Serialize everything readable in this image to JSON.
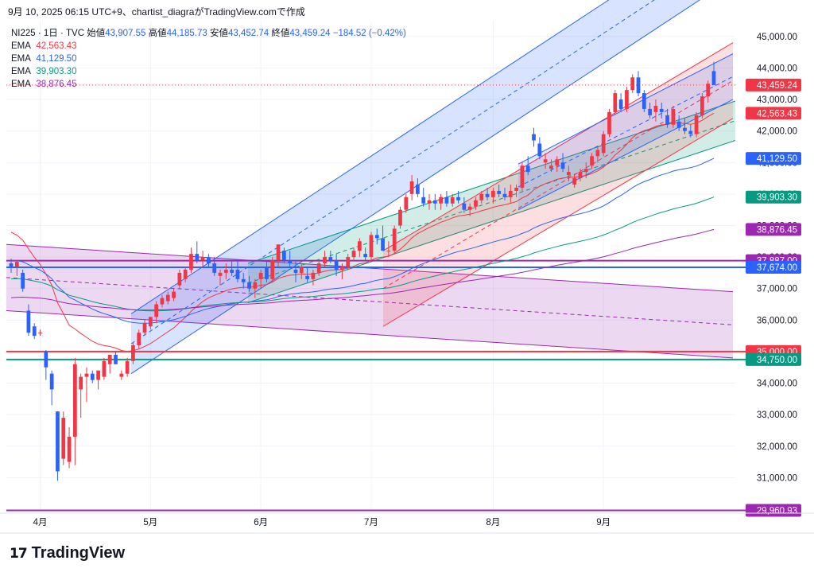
{
  "header": {
    "date_line": "9月 10, 2025 06:15 UTC+9、chartist_diagraがTradingView.comで作成"
  },
  "ohlc": {
    "symbol": "NI225 · 1日 · TVC",
    "open_label": "始値",
    "open": "43,907.55",
    "high_label": "高値",
    "high": "44,185.73",
    "low_label": "安値",
    "low": "43,452.74",
    "close_label": "終値",
    "close": "43,459.24",
    "change": "−184.52 (−0.42%)"
  },
  "legend": [
    {
      "name": "EMA",
      "value": "42,563.43",
      "color": "#f23645"
    },
    {
      "name": "EMA",
      "value": "41,129.50",
      "color": "#2962ff"
    },
    {
      "name": "EMA",
      "value": "39,903.30",
      "color": "#089981"
    },
    {
      "name": "EMA",
      "value": "38,876.45",
      "color": "#9c27b0"
    }
  ],
  "logo": {
    "text": "TradingView"
  },
  "colors": {
    "up": "#f23645",
    "down": "#2962ff",
    "ema_red": "#f23645",
    "ema_blue": "#2962ff",
    "ema_green": "#089981",
    "ema_purple": "#9c27b0"
  },
  "chart_data": {
    "type": "candlestick",
    "y_axis_ticks": [
      "31,000.00",
      "32,000.00",
      "33,000.00",
      "34,000.00",
      "35,000.00",
      "36,000.00",
      "37,000.00",
      "38,000.00",
      "39,000.00",
      "40,000.00",
      "41,000.00",
      "42,000.00",
      "43,000.00",
      "44,000.00",
      "45,000.00"
    ],
    "ylim": [
      30000,
      45500
    ],
    "x_axis_ticks": [
      "4月",
      "5月",
      "6月",
      "7月",
      "8月",
      "9月"
    ],
    "price_labels": [
      {
        "text": "43,459.24",
        "value": 43459.24,
        "color": "#f23645"
      },
      {
        "text": "42,563.43",
        "value": 42563.43,
        "color": "#f23645"
      },
      {
        "text": "41,129.50",
        "value": 41129.5,
        "color": "#2962ff"
      },
      {
        "text": "39,903.30",
        "value": 39903.3,
        "color": "#089981"
      },
      {
        "text": "38,876.45",
        "value": 38876.45,
        "color": "#9c27b0"
      },
      {
        "text": "37,887.00",
        "value": 37887,
        "color": "#9c27b0"
      },
      {
        "text": "37,674.00",
        "value": 37674,
        "color": "#2962ff"
      },
      {
        "text": "35,000.00",
        "value": 35000,
        "color": "#f23645"
      },
      {
        "text": "34,750.00",
        "value": 34750,
        "color": "#089981"
      },
      {
        "text": "29,960.93",
        "value": 29960.93,
        "color": "#9c27b0"
      }
    ],
    "horizontal_lines": [
      {
        "value": 37887,
        "color": "#9c27b0"
      },
      {
        "value": 37674,
        "color": "#2962ff"
      },
      {
        "value": 35000,
        "color": "#f23645"
      },
      {
        "value": 34750,
        "color": "#089981"
      },
      {
        "value": 29960.93,
        "color": "#9c27b0"
      }
    ],
    "candles": [
      [
        37800,
        37950,
        37500,
        37700
      ],
      [
        37700,
        37900,
        37400,
        37850
      ],
      [
        37500,
        37600,
        36900,
        37000
      ],
      [
        36300,
        36500,
        35500,
        35600
      ],
      [
        35800,
        35900,
        35400,
        35500
      ],
      [
        35600,
        35700,
        35500,
        35600
      ],
      [
        35000,
        35050,
        34100,
        34500
      ],
      [
        34300,
        34400,
        33300,
        33800
      ],
      [
        33100,
        33100,
        30900,
        31200
      ],
      [
        31600,
        33100,
        31400,
        32900
      ],
      [
        31500,
        32600,
        31300,
        32300
      ],
      [
        32300,
        34800,
        31400,
        34600
      ],
      [
        33800,
        34300,
        32900,
        34200
      ],
      [
        34200,
        34500,
        33400,
        34300
      ],
      [
        34300,
        34400,
        34000,
        34100
      ],
      [
        34100,
        34400,
        33800,
        34400
      ],
      [
        34200,
        34800,
        34100,
        34700
      ],
      [
        34600,
        34900,
        34300,
        34900
      ],
      [
        34900,
        35000,
        34600,
        34600
      ],
      [
        34200,
        34400,
        34100,
        34300
      ],
      [
        34300,
        34800,
        34200,
        34700
      ],
      [
        34700,
        35300,
        34600,
        35200
      ],
      [
        35200,
        35700,
        35100,
        35600
      ],
      [
        35600,
        36000,
        35500,
        35900
      ],
      [
        35800,
        36100,
        35700,
        36100
      ],
      [
        36100,
        36600,
        35900,
        36500
      ],
      [
        36500,
        36800,
        36400,
        36700
      ],
      [
        36600,
        36900,
        36500,
        36800
      ],
      [
        36700,
        37000,
        36600,
        36900
      ],
      [
        37100,
        37600,
        37000,
        37500
      ],
      [
        37300,
        37700,
        37200,
        37600
      ],
      [
        37600,
        38300,
        37500,
        38100
      ],
      [
        38100,
        38500,
        37800,
        37900
      ],
      [
        37900,
        38200,
        37700,
        38000
      ],
      [
        38000,
        38100,
        37700,
        37800
      ],
      [
        37800,
        38000,
        37400,
        37500
      ],
      [
        37400,
        37600,
        37100,
        37500
      ],
      [
        37500,
        37800,
        37300,
        37600
      ],
      [
        37600,
        37900,
        37400,
        37500
      ],
      [
        37600,
        37900,
        37200,
        37300
      ],
      [
        37300,
        37500,
        37000,
        37200
      ],
      [
        37200,
        37400,
        36900,
        37000
      ],
      [
        37000,
        37300,
        36700,
        37200
      ],
      [
        37300,
        37600,
        37000,
        37500
      ],
      [
        37700,
        37900,
        37200,
        37300
      ],
      [
        37300,
        38000,
        37200,
        37900
      ],
      [
        37900,
        38400,
        37700,
        38400
      ],
      [
        38200,
        38300,
        37800,
        37900
      ],
      [
        37900,
        38200,
        37700,
        37800
      ],
      [
        37600,
        37900,
        37200,
        37500
      ],
      [
        37500,
        37800,
        37300,
        37700
      ],
      [
        37400,
        37700,
        37200,
        37300
      ],
      [
        37300,
        37600,
        37100,
        37500
      ],
      [
        37500,
        37900,
        37400,
        37800
      ],
      [
        37800,
        38200,
        37700,
        38000
      ],
      [
        38000,
        38200,
        37800,
        37900
      ],
      [
        37900,
        38100,
        37400,
        37600
      ],
      [
        37600,
        37800,
        37300,
        37700
      ],
      [
        37700,
        38100,
        37600,
        38000
      ],
      [
        38000,
        38300,
        37900,
        38200
      ],
      [
        38200,
        38600,
        38000,
        38500
      ],
      [
        38100,
        38300,
        37900,
        38000
      ],
      [
        38000,
        38800,
        37900,
        38700
      ],
      [
        38700,
        38900,
        38400,
        38600
      ],
      [
        38600,
        39000,
        38200,
        38200
      ],
      [
        38200,
        38500,
        38000,
        38200
      ],
      [
        38200,
        39000,
        38100,
        38900
      ],
      [
        39000,
        39600,
        38900,
        39500
      ],
      [
        39500,
        40000,
        39400,
        39900
      ],
      [
        40000,
        40600,
        39800,
        40400
      ],
      [
        40300,
        40500,
        39900,
        40000
      ],
      [
        39900,
        40200,
        39600,
        39700
      ],
      [
        39700,
        40000,
        39500,
        39800
      ],
      [
        39800,
        40000,
        39500,
        39700
      ],
      [
        39700,
        40000,
        39500,
        39900
      ],
      [
        39900,
        40100,
        39600,
        39700
      ],
      [
        39700,
        40000,
        39600,
        39900
      ],
      [
        39900,
        40100,
        39700,
        39800
      ],
      [
        39700,
        39900,
        39400,
        39500
      ],
      [
        39500,
        39700,
        39300,
        39600
      ],
      [
        39600,
        39900,
        39500,
        39800
      ],
      [
        39800,
        40100,
        39700,
        40000
      ],
      [
        40000,
        40200,
        39800,
        39900
      ],
      [
        39900,
        40200,
        39700,
        40100
      ],
      [
        40100,
        40300,
        39900,
        40000
      ],
      [
        40000,
        40200,
        39800,
        39900
      ],
      [
        39900,
        40300,
        39700,
        40100
      ],
      [
        40100,
        40300,
        39900,
        40200
      ],
      [
        40200,
        41000,
        40100,
        40900
      ],
      [
        40900,
        41200,
        40600,
        40700
      ],
      [
        41900,
        42100,
        41500,
        41700
      ],
      [
        41600,
        41800,
        41100,
        41200
      ],
      [
        41000,
        41300,
        40800,
        41100
      ],
      [
        40800,
        41100,
        40700,
        40900
      ],
      [
        40900,
        41200,
        40700,
        41100
      ],
      [
        41000,
        41300,
        40700,
        40800
      ],
      [
        40600,
        40900,
        40400,
        40700
      ],
      [
        40300,
        40600,
        40200,
        40500
      ],
      [
        40500,
        40800,
        40400,
        40700
      ],
      [
        40700,
        41000,
        40500,
        40800
      ],
      [
        40900,
        41300,
        40800,
        41200
      ],
      [
        41200,
        41500,
        41000,
        41400
      ],
      [
        41300,
        42000,
        41200,
        41900
      ],
      [
        41900,
        42700,
        41800,
        42600
      ],
      [
        42600,
        43300,
        42500,
        43200
      ],
      [
        43000,
        43200,
        42600,
        42700
      ],
      [
        42700,
        43400,
        42600,
        43300
      ],
      [
        43300,
        43800,
        43200,
        43700
      ],
      [
        43700,
        43900,
        43100,
        43200
      ],
      [
        43200,
        43300,
        42600,
        42700
      ],
      [
        42700,
        42900,
        42400,
        42500
      ],
      [
        42600,
        43000,
        42300,
        42800
      ],
      [
        42700,
        42900,
        42400,
        42600
      ],
      [
        42500,
        42700,
        42100,
        42200
      ],
      [
        42200,
        42800,
        42100,
        42700
      ],
      [
        42300,
        42500,
        42000,
        42100
      ],
      [
        42100,
        42400,
        41900,
        42000
      ],
      [
        42000,
        42200,
        41800,
        41900
      ],
      [
        41900,
        42600,
        41800,
        42500
      ],
      [
        42500,
        43200,
        42400,
        43100
      ],
      [
        43100,
        43600,
        42900,
        43500
      ],
      [
        43900,
        44200,
        43450,
        43459
      ]
    ],
    "ema_series": [
      {
        "color": "#f23645",
        "end_value": 42563.43
      },
      {
        "color": "#2962ff",
        "end_value": 41129.5
      },
      {
        "color": "#089981",
        "end_value": 39903.3
      },
      {
        "color": "#9c27b0",
        "end_value": 38876.45
      }
    ]
  }
}
